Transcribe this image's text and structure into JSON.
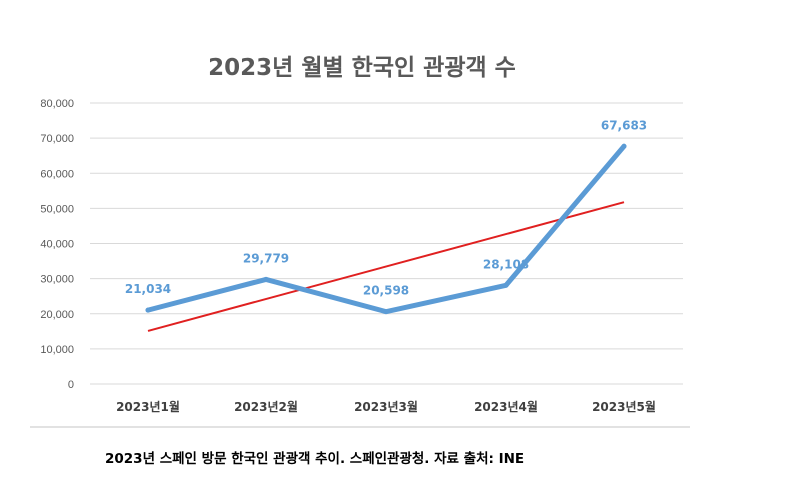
{
  "chart_data": {
    "type": "line",
    "title": "2023년 월별 한국인 관광객 수",
    "categories": [
      "2023년1월",
      "2023년2월",
      "2023년3월",
      "2023년4월",
      "2023년5월"
    ],
    "series": [
      {
        "name": "한국인 관광객 수",
        "values": [
          21034,
          29779,
          20598,
          28108,
          67683
        ],
        "labels": [
          "21,034",
          "29,779",
          "20,598",
          "28,108",
          "67,683"
        ],
        "color": "#5b9bd5"
      },
      {
        "name": "추세선 (linear trend)",
        "type": "trendline",
        "color": "#e02020"
      }
    ],
    "yticks": [
      "0",
      "10,000",
      "20,000",
      "30,000",
      "40,000",
      "50,000",
      "60,000",
      "70,000",
      "80,000"
    ],
    "ylim": [
      0,
      80000
    ],
    "xlabel": "",
    "ylabel": "",
    "grid": true
  },
  "caption": "2023년 스페인 방문 한국인 관광객 추이. 스페인관광청. 자료 출처: INE"
}
